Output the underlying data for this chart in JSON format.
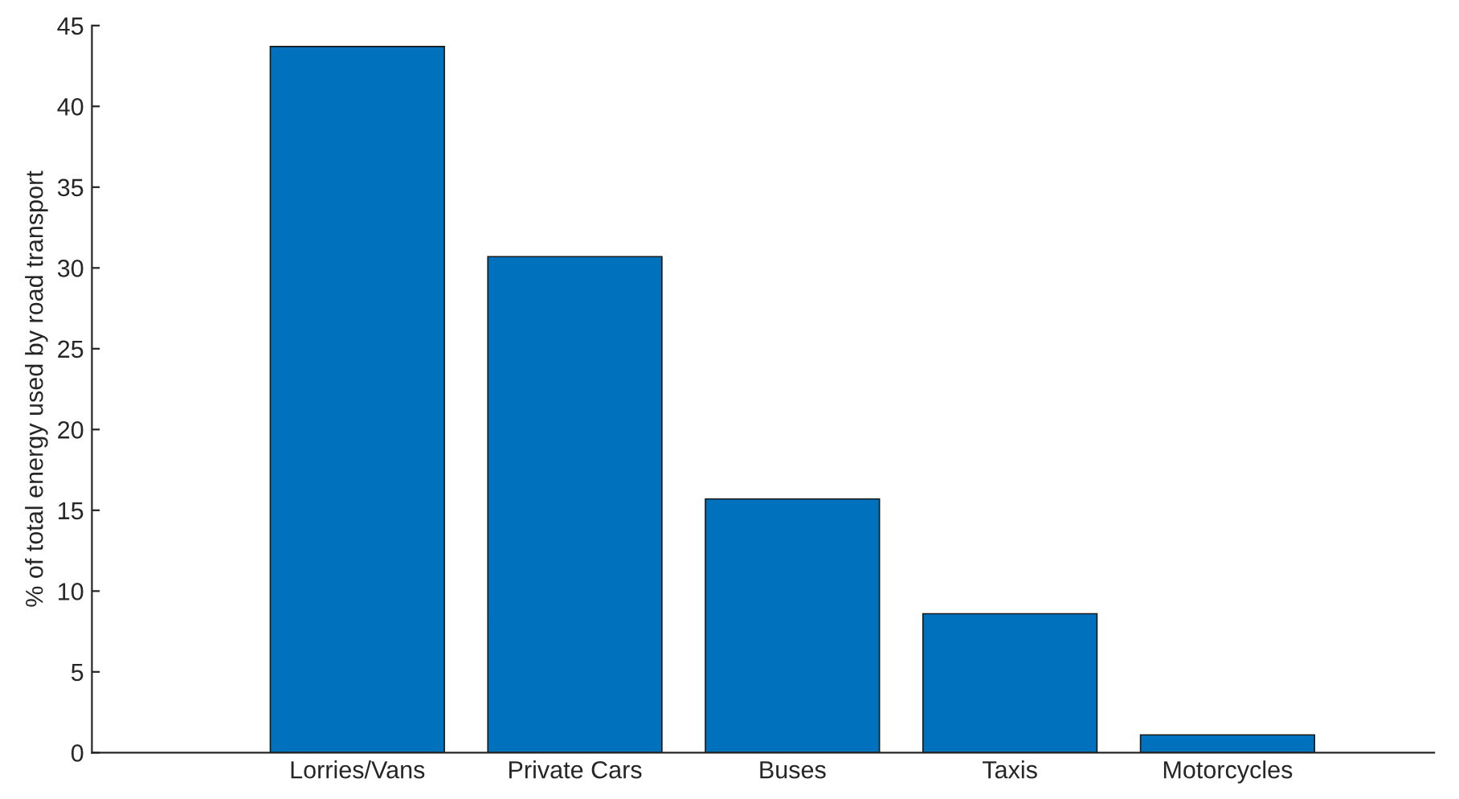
{
  "chart_data": {
    "type": "bar",
    "ylabel": "% of total energy used by road transport",
    "categories": [
      "Lorries/Vans",
      "Private Cars",
      "Buses",
      "Taxis",
      "Motorcycles"
    ],
    "values": [
      43.7,
      30.7,
      15.7,
      8.6,
      1.1
    ],
    "color": "#0072bd",
    "ylim": [
      0,
      45
    ],
    "yticks": [
      0,
      5,
      10,
      15,
      20,
      25,
      30,
      35,
      40,
      45
    ],
    "grid": false
  }
}
